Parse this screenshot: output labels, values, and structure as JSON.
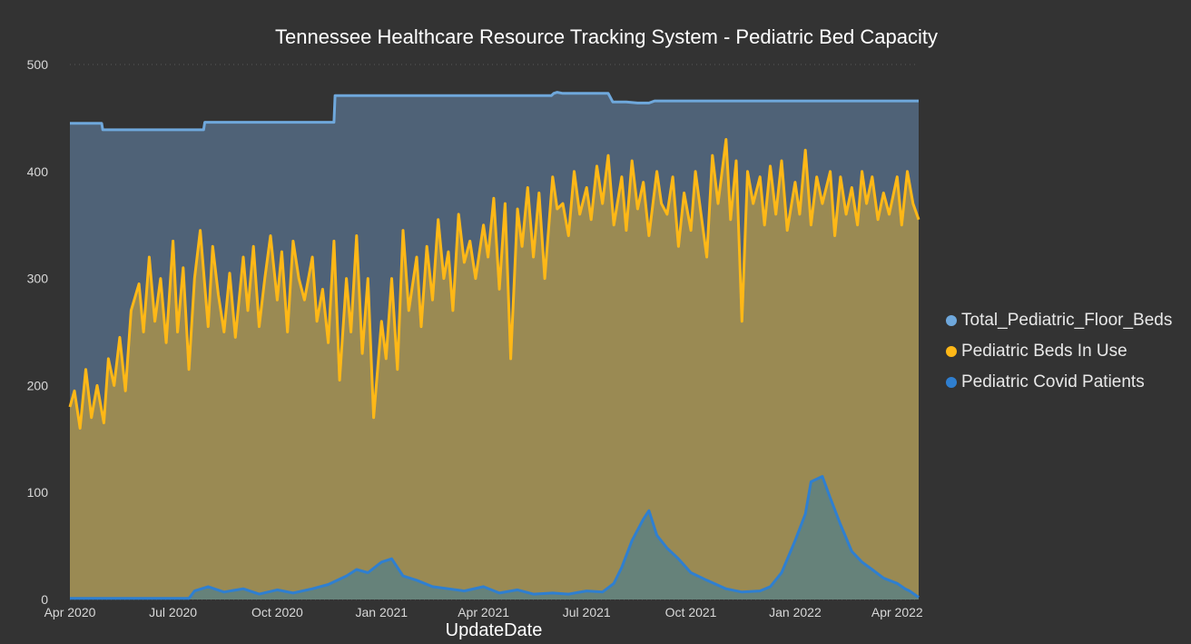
{
  "chart_data": {
    "type": "area",
    "title": "Tennessee Healthcare Resource Tracking System - Pediatric Bed Capacity",
    "xlabel": "UpdateDate",
    "ylabel": "",
    "ylim": [
      0,
      500
    ],
    "xlim": [
      "2020-04-01",
      "2022-04-20"
    ],
    "grid": true,
    "legend_position": "right",
    "y_ticks": [
      "0",
      "100",
      "200",
      "300",
      "400",
      "500"
    ],
    "x_ticks": [
      {
        "date": "2020-04-01",
        "label": "Apr 2020"
      },
      {
        "date": "2020-07-01",
        "label": "Jul 2020"
      },
      {
        "date": "2020-10-01",
        "label": "Oct 2020"
      },
      {
        "date": "2021-01-01",
        "label": "Jan 2021"
      },
      {
        "date": "2021-04-01",
        "label": "Apr 2021"
      },
      {
        "date": "2021-07-01",
        "label": "Jul 2021"
      },
      {
        "date": "2021-10-01",
        "label": "Oct 2021"
      },
      {
        "date": "2022-01-01",
        "label": "Jan 2022"
      },
      {
        "date": "2022-04-01",
        "label": "Apr 2022"
      }
    ],
    "series": [
      {
        "name": "Total_Pediatric_Floor_Beds",
        "color": "#6fa8dc",
        "fill": "#4f6277",
        "x": [
          "2020-04-01",
          "2020-04-29",
          "2020-04-30",
          "2020-07-28",
          "2020-07-29",
          "2020-11-20",
          "2020-11-21",
          "2021-05-31",
          "2021-06-02",
          "2021-06-05",
          "2021-06-10",
          "2021-07-20",
          "2021-07-22",
          "2021-07-24",
          "2021-08-05",
          "2021-08-15",
          "2021-08-25",
          "2021-08-30",
          "2021-09-05",
          "2022-04-20"
        ],
        "values": [
          445,
          445,
          439,
          439,
          446,
          446,
          471,
          471,
          473,
          474,
          473,
          473,
          469,
          465,
          465,
          464,
          464,
          466,
          466,
          466
        ]
      },
      {
        "name": "Pediatric Beds In Use",
        "color": "#ffb817",
        "fill": "#9a8a53",
        "x": [
          "2020-04-01",
          "2020-04-05",
          "2020-04-10",
          "2020-04-15",
          "2020-04-20",
          "2020-04-25",
          "2020-05-01",
          "2020-05-05",
          "2020-05-10",
          "2020-05-15",
          "2020-05-20",
          "2020-05-25",
          "2020-06-01",
          "2020-06-05",
          "2020-06-10",
          "2020-06-15",
          "2020-06-20",
          "2020-06-25",
          "2020-07-01",
          "2020-07-05",
          "2020-07-10",
          "2020-07-15",
          "2020-07-20",
          "2020-07-25",
          "2020-08-01",
          "2020-08-05",
          "2020-08-10",
          "2020-08-15",
          "2020-08-20",
          "2020-08-25",
          "2020-09-01",
          "2020-09-05",
          "2020-09-10",
          "2020-09-15",
          "2020-09-20",
          "2020-09-25",
          "2020-10-01",
          "2020-10-05",
          "2020-10-10",
          "2020-10-15",
          "2020-10-20",
          "2020-10-25",
          "2020-11-01",
          "2020-11-05",
          "2020-11-10",
          "2020-11-15",
          "2020-11-20",
          "2020-11-25",
          "2020-12-01",
          "2020-12-05",
          "2020-12-10",
          "2020-12-15",
          "2020-12-20",
          "2020-12-25",
          "2021-01-01",
          "2021-01-05",
          "2021-01-10",
          "2021-01-15",
          "2021-01-20",
          "2021-01-25",
          "2021-02-01",
          "2021-02-05",
          "2021-02-10",
          "2021-02-15",
          "2021-02-20",
          "2021-02-25",
          "2021-03-01",
          "2021-03-05",
          "2021-03-10",
          "2021-03-15",
          "2021-03-20",
          "2021-03-25",
          "2021-04-01",
          "2021-04-05",
          "2021-04-10",
          "2021-04-15",
          "2021-04-20",
          "2021-04-25",
          "2021-05-01",
          "2021-05-05",
          "2021-05-10",
          "2021-05-15",
          "2021-05-20",
          "2021-05-25",
          "2021-06-01",
          "2021-06-05",
          "2021-06-10",
          "2021-06-15",
          "2021-06-20",
          "2021-06-25",
          "2021-07-01",
          "2021-07-05",
          "2021-07-10",
          "2021-07-15",
          "2021-07-20",
          "2021-07-25",
          "2021-08-01",
          "2021-08-05",
          "2021-08-10",
          "2021-08-15",
          "2021-08-20",
          "2021-08-25",
          "2021-09-01",
          "2021-09-05",
          "2021-09-10",
          "2021-09-15",
          "2021-09-20",
          "2021-09-25",
          "2021-10-01",
          "2021-10-05",
          "2021-10-10",
          "2021-10-15",
          "2021-10-20",
          "2021-10-25",
          "2021-11-01",
          "2021-11-05",
          "2021-11-10",
          "2021-11-15",
          "2021-11-20",
          "2021-11-25",
          "2021-12-01",
          "2021-12-05",
          "2021-12-10",
          "2021-12-15",
          "2021-12-20",
          "2021-12-25",
          "2022-01-01",
          "2022-01-05",
          "2022-01-10",
          "2022-01-15",
          "2022-01-20",
          "2022-01-25",
          "2022-02-01",
          "2022-02-05",
          "2022-02-10",
          "2022-02-15",
          "2022-02-20",
          "2022-02-25",
          "2022-03-01",
          "2022-03-05",
          "2022-03-10",
          "2022-03-15",
          "2022-03-20",
          "2022-03-25",
          "2022-04-01",
          "2022-04-05",
          "2022-04-10",
          "2022-04-15",
          "2022-04-20"
        ],
        "values": [
          180,
          195,
          160,
          215,
          170,
          200,
          165,
          225,
          200,
          245,
          195,
          270,
          295,
          250,
          320,
          260,
          300,
          240,
          335,
          250,
          310,
          215,
          300,
          345,
          255,
          330,
          285,
          250,
          305,
          245,
          320,
          270,
          330,
          255,
          300,
          340,
          280,
          325,
          250,
          335,
          300,
          280,
          320,
          260,
          290,
          240,
          335,
          205,
          300,
          250,
          340,
          230,
          300,
          170,
          260,
          225,
          300,
          215,
          345,
          270,
          320,
          255,
          330,
          280,
          355,
          300,
          325,
          270,
          360,
          315,
          335,
          300,
          350,
          320,
          375,
          290,
          370,
          225,
          365,
          330,
          385,
          320,
          380,
          300,
          395,
          365,
          370,
          340,
          400,
          360,
          385,
          355,
          405,
          370,
          415,
          350,
          395,
          345,
          410,
          365,
          390,
          340,
          400,
          370,
          360,
          395,
          330,
          380,
          345,
          400,
          360,
          320,
          415,
          370,
          430,
          355,
          410,
          260,
          400,
          370,
          395,
          350,
          405,
          360,
          410,
          345,
          390,
          360,
          420,
          350,
          395,
          370,
          400,
          340,
          395,
          360,
          385,
          350,
          400,
          370,
          395,
          355,
          380,
          360,
          395,
          350,
          400,
          370,
          355
        ]
      },
      {
        "name": "Pediatric Covid Patients",
        "color": "#2f7fd0",
        "fill": "#66827a",
        "x": [
          "2020-04-01",
          "2020-07-15",
          "2020-07-20",
          "2020-08-01",
          "2020-08-15",
          "2020-09-01",
          "2020-09-15",
          "2020-10-01",
          "2020-10-15",
          "2020-11-01",
          "2020-11-15",
          "2020-12-01",
          "2020-12-10",
          "2020-12-20",
          "2021-01-01",
          "2021-01-10",
          "2021-01-20",
          "2021-02-01",
          "2021-02-15",
          "2021-03-01",
          "2021-03-15",
          "2021-04-01",
          "2021-04-15",
          "2021-05-01",
          "2021-05-15",
          "2021-06-01",
          "2021-06-15",
          "2021-07-01",
          "2021-07-15",
          "2021-07-25",
          "2021-08-01",
          "2021-08-10",
          "2021-08-20",
          "2021-08-25",
          "2021-09-01",
          "2021-09-10",
          "2021-09-20",
          "2021-10-01",
          "2021-10-15",
          "2021-11-01",
          "2021-11-15",
          "2021-12-01",
          "2021-12-10",
          "2021-12-20",
          "2022-01-01",
          "2022-01-10",
          "2022-01-15",
          "2022-01-25",
          "2022-02-01",
          "2022-02-10",
          "2022-02-20",
          "2022-03-01",
          "2022-03-10",
          "2022-03-20",
          "2022-04-01",
          "2022-04-08",
          "2022-04-12",
          "2022-04-20"
        ],
        "values": [
          1,
          1,
          8,
          12,
          7,
          10,
          5,
          9,
          6,
          10,
          14,
          22,
          28,
          25,
          35,
          38,
          22,
          18,
          12,
          10,
          8,
          12,
          6,
          9,
          5,
          6,
          5,
          8,
          7,
          15,
          30,
          55,
          75,
          83,
          60,
          48,
          38,
          25,
          18,
          10,
          7,
          8,
          12,
          25,
          55,
          80,
          110,
          115,
          95,
          70,
          45,
          35,
          28,
          20,
          15,
          10,
          8,
          2
        ]
      }
    ]
  }
}
